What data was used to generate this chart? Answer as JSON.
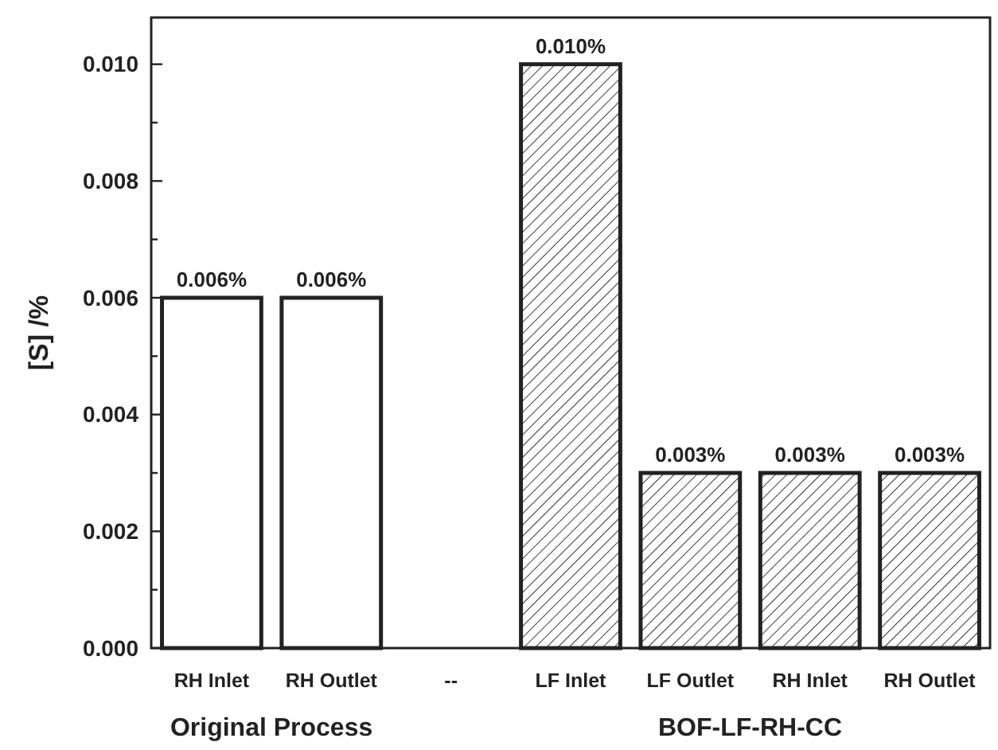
{
  "chart_data": {
    "type": "bar",
    "ylabel": "[S] /%",
    "categories": [
      "RH Inlet",
      "RH Outlet",
      "--",
      "LF Inlet",
      "LF Outlet",
      "RH Inlet",
      "RH Outlet"
    ],
    "values": [
      0.006,
      0.006,
      null,
      0.01,
      0.003,
      0.003,
      0.003
    ],
    "colors": [
      "#ffffff",
      "#ffffff",
      "#ffffff",
      "#222222",
      "#222222",
      "#222222",
      "#222222"
    ],
    "value_labels": [
      "0.006%",
      "0.006%",
      null,
      "0.010%",
      "0.003%",
      "0.003%",
      "0.003%"
    ],
    "ylim": [
      0,
      0.0108
    ],
    "yticks": [
      {
        "value": 0,
        "label": "0.000"
      },
      {
        "value": 0.001,
        "label": null
      },
      {
        "value": 0.002,
        "label": "0.002"
      },
      {
        "value": 0.003,
        "label": null
      },
      {
        "value": 0.004,
        "label": "0.004"
      },
      {
        "value": 0.005,
        "label": null
      },
      {
        "value": 0.006,
        "label": "0.006"
      },
      {
        "value": 0.007,
        "label": null
      },
      {
        "value": 0.008,
        "label": "0.008"
      },
      {
        "value": 0.009,
        "label": null
      },
      {
        "value": 0.01,
        "label": "0.010"
      }
    ],
    "annotations": [
      "Original Process",
      "BOF-LF-RH-CC"
    ],
    "grid": false
  }
}
